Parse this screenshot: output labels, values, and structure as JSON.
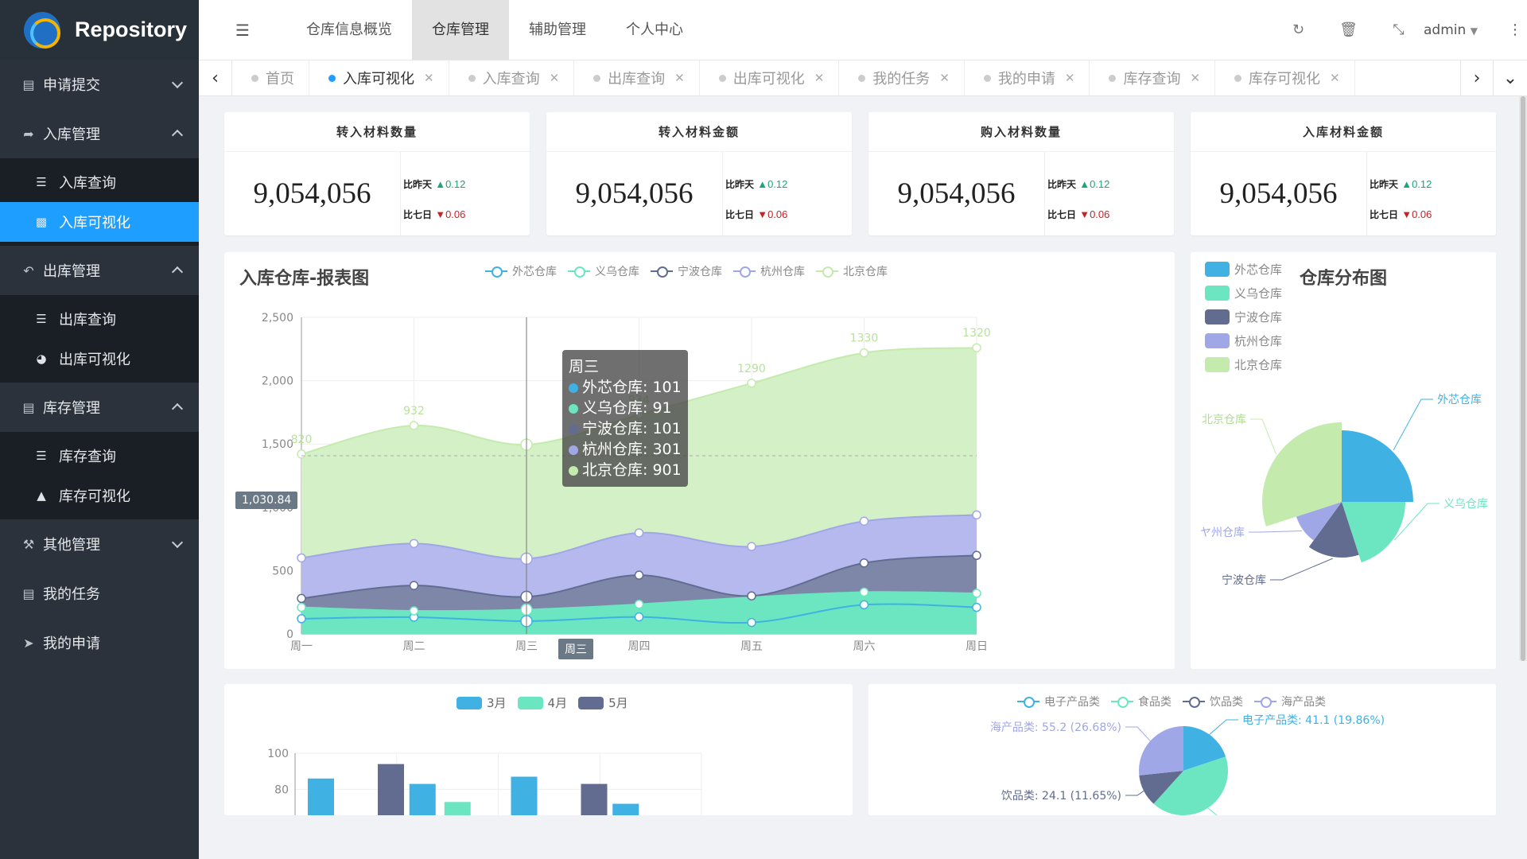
{
  "app": {
    "title": "Repository"
  },
  "sidebar": {
    "items": [
      {
        "label": "申请提交",
        "icon": "book-icon",
        "expanded": false
      },
      {
        "label": "入库管理",
        "icon": "share-icon",
        "expanded": true,
        "children": [
          {
            "label": "入库查询",
            "icon": "list-icon"
          },
          {
            "label": "入库可视化",
            "icon": "bar-chart-icon",
            "active": true
          }
        ]
      },
      {
        "label": "出库管理",
        "icon": "reply-icon",
        "expanded": true,
        "children": [
          {
            "label": "出库查询",
            "icon": "list-icon"
          },
          {
            "label": "出库可视化",
            "icon": "pie-chart-icon"
          }
        ]
      },
      {
        "label": "库存管理",
        "icon": "tasks-icon",
        "expanded": true,
        "children": [
          {
            "label": "库存查询",
            "icon": "list-icon"
          },
          {
            "label": "库存可视化",
            "icon": "area-chart-icon"
          }
        ]
      },
      {
        "label": "其他管理",
        "icon": "wrench-icon",
        "expanded": false
      },
      {
        "label": "我的任务",
        "icon": "tasks-icon"
      },
      {
        "label": "我的申请",
        "icon": "send-icon"
      }
    ]
  },
  "topbar": {
    "nav": [
      "仓库信息概览",
      "仓库管理",
      "辅助管理",
      "个人中心"
    ],
    "active_nav": "仓库管理",
    "user": "admin"
  },
  "tabs": [
    "首页",
    "入库可视化",
    "入库查询",
    "出库查询",
    "出库可视化",
    "我的任务",
    "我的申请",
    "库存查询",
    "库存可视化"
  ],
  "active_tab": "入库可视化",
  "stats": [
    {
      "title": "转入材料数量",
      "value": "9,054,056",
      "yesterday_label": "比昨天",
      "yesterday": "0.12",
      "week_label": "比七日",
      "week": "0.06"
    },
    {
      "title": "转入材料金额",
      "value": "9,054,056",
      "yesterday_label": "比昨天",
      "yesterday": "0.12",
      "week_label": "比七日",
      "week": "0.06"
    },
    {
      "title": "购入材料数量",
      "value": "9,054,056",
      "yesterday_label": "比昨天",
      "yesterday": "0.12",
      "week_label": "比七日",
      "week": "0.06"
    },
    {
      "title": "入库材料金额",
      "value": "9,054,056",
      "yesterday_label": "比昨天",
      "yesterday": "0.12",
      "week_label": "比七日",
      "week": "0.06"
    }
  ],
  "colors": {
    "c1": "#3fb1e3",
    "c2": "#6be6c1",
    "c3": "#626c91",
    "c4": "#a0a7e6",
    "c5": "#c4ebad",
    "accent": "#1e9fff",
    "up": "#1aa57a",
    "down": "#c72226"
  },
  "area_chart": {
    "title": "入库仓库-报表图",
    "tooltip_day": "周三",
    "axis_pointer_value": "1,030.84",
    "axis_pointer_label": "周三",
    "chart_data": {
      "type": "area",
      "stacked": true,
      "categories": [
        "周一",
        "周二",
        "周三",
        "周四",
        "周五",
        "周六",
        "周日"
      ],
      "y_ticks": [
        "0",
        "500",
        "1,000",
        "1,500",
        "2,000",
        "2,500"
      ],
      "ylim": [
        0,
        2500
      ],
      "series": [
        {
          "name": "外芯仓库",
          "values": [
            120,
            132,
            101,
            134,
            90,
            230,
            210
          ]
        },
        {
          "name": "义乌仓库",
          "values": [
            90,
            50,
            91,
            100,
            200,
            100,
            110
          ]
        },
        {
          "name": "宁波仓库",
          "values": [
            70,
            200,
            101,
            230,
            10,
            230,
            300
          ]
        },
        {
          "name": "杭州仓库",
          "values": [
            320,
            332,
            301,
            334,
            390,
            330,
            320
          ]
        },
        {
          "name": "北京仓库",
          "values": [
            820,
            932,
            901,
            934,
            1290,
            1330,
            1320
          ]
        }
      ],
      "top_labels": [
        "820",
        "932",
        "934",
        "1290",
        "1330",
        "1320"
      ]
    }
  },
  "pie_chart": {
    "title": "仓库分布图",
    "chart_data": {
      "type": "pie",
      "rose": true,
      "labels": [
        "外芯仓库",
        "义乌仓库",
        "宁波仓库",
        "杭州仓库",
        "北京仓库"
      ],
      "values": [
        25,
        20,
        15,
        10,
        30
      ],
      "outer_labels": [
        "外芯仓库",
        "义乌仓库",
        "宁波仓库",
        "ヤ州仓库",
        "北京仓库"
      ]
    }
  },
  "bar_chart": {
    "chart_data": {
      "type": "bar",
      "series": [
        {
          "name": "3月",
          "values": [
            86,
            83,
            87,
            72
          ]
        },
        {
          "name": "4月",
          "values": [
            null,
            73,
            62,
            null
          ]
        },
        {
          "name": "5月",
          "values": [
            94,
            null,
            83,
            null
          ]
        }
      ],
      "y_ticks": [
        "80",
        "100"
      ]
    }
  },
  "donut_chart": {
    "chart_data": {
      "type": "pie",
      "labels": [
        "电子产品类",
        "食品类",
        "饮品类",
        "海产品类"
      ],
      "values": [
        41.1,
        86.5,
        24.1,
        55.2
      ],
      "percents": [
        "19.86%",
        "41.81%",
        "11.65%",
        "26.68%"
      ],
      "slice_labels": [
        "电子产品类: 41.1 (19.86%)",
        "食品类: 86.5 (41.81%)",
        "饮品类: 24.1 (11.65%)",
        "海产品类: 55.2 (26.68%)"
      ]
    }
  }
}
